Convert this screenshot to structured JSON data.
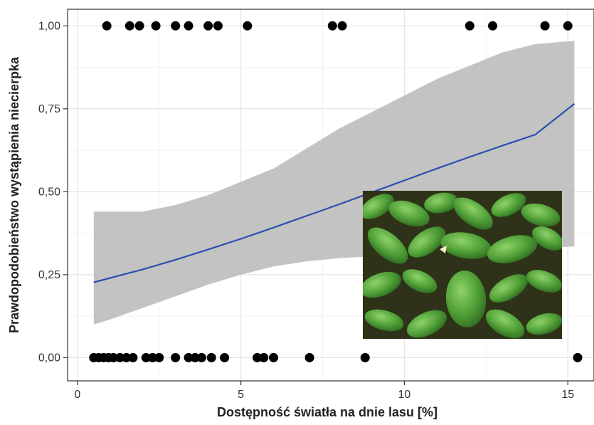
{
  "chart_data": {
    "type": "scatter",
    "xlabel": "Dostępność światła na dnie lasu [%]",
    "ylabel": "Prawdopodobieństwo wystąpienia niecierpka",
    "xlim": [
      -0.3,
      15.8
    ],
    "ylim": [
      -0.07,
      1.05
    ],
    "x_ticks": [
      0,
      5,
      10,
      15
    ],
    "x_tick_labels": [
      "0",
      "5",
      "10",
      "15"
    ],
    "y_ticks": [
      0,
      0.25,
      0.5,
      0.75,
      1
    ],
    "y_tick_labels": [
      "0,00",
      "0,25",
      "0,50",
      "0,75",
      "1,00"
    ],
    "grid": true,
    "colors": {
      "points": "#000000",
      "fit_line": "#2b4fb0",
      "confidence_band": "#bdbdbd",
      "panel_border": "#333333",
      "grid": "#e3e3e3"
    },
    "points_presence": [
      0.9,
      1.6,
      1.9,
      2.4,
      3.0,
      3.4,
      4.0,
      4.3,
      5.2,
      7.8,
      8.1,
      12.0,
      12.7,
      14.3,
      15.0
    ],
    "points_absence": [
      0.5,
      0.65,
      0.8,
      0.95,
      1.1,
      1.3,
      1.5,
      1.7,
      2.1,
      2.3,
      2.5,
      3.0,
      3.4,
      3.6,
      3.8,
      4.1,
      4.5,
      5.5,
      5.7,
      6.0,
      7.1,
      8.8,
      15.3
    ],
    "fit": {
      "x": [
        0.5,
        1,
        2,
        3,
        4,
        5,
        6,
        7,
        8,
        9,
        10,
        11,
        12,
        13,
        14,
        15.2
      ],
      "y": [
        0.227,
        0.24,
        0.266,
        0.295,
        0.326,
        0.358,
        0.392,
        0.427,
        0.462,
        0.498,
        0.534,
        0.57,
        0.605,
        0.639,
        0.672,
        0.765
      ]
    },
    "confidence_band": {
      "x": [
        0.5,
        1,
        2,
        3,
        4,
        5,
        6,
        7,
        8,
        9,
        10,
        11,
        12,
        13,
        14,
        15.2
      ],
      "lower": [
        0.1,
        0.115,
        0.15,
        0.185,
        0.22,
        0.25,
        0.275,
        0.29,
        0.3,
        0.305,
        0.31,
        0.315,
        0.32,
        0.325,
        0.33,
        0.335
      ],
      "upper": [
        0.44,
        0.44,
        0.44,
        0.46,
        0.49,
        0.53,
        0.57,
        0.63,
        0.69,
        0.74,
        0.79,
        0.84,
        0.88,
        0.92,
        0.945,
        0.955
      ]
    },
    "inset_image": "photo of green impatiens (niecierpek) plants on forest floor"
  }
}
